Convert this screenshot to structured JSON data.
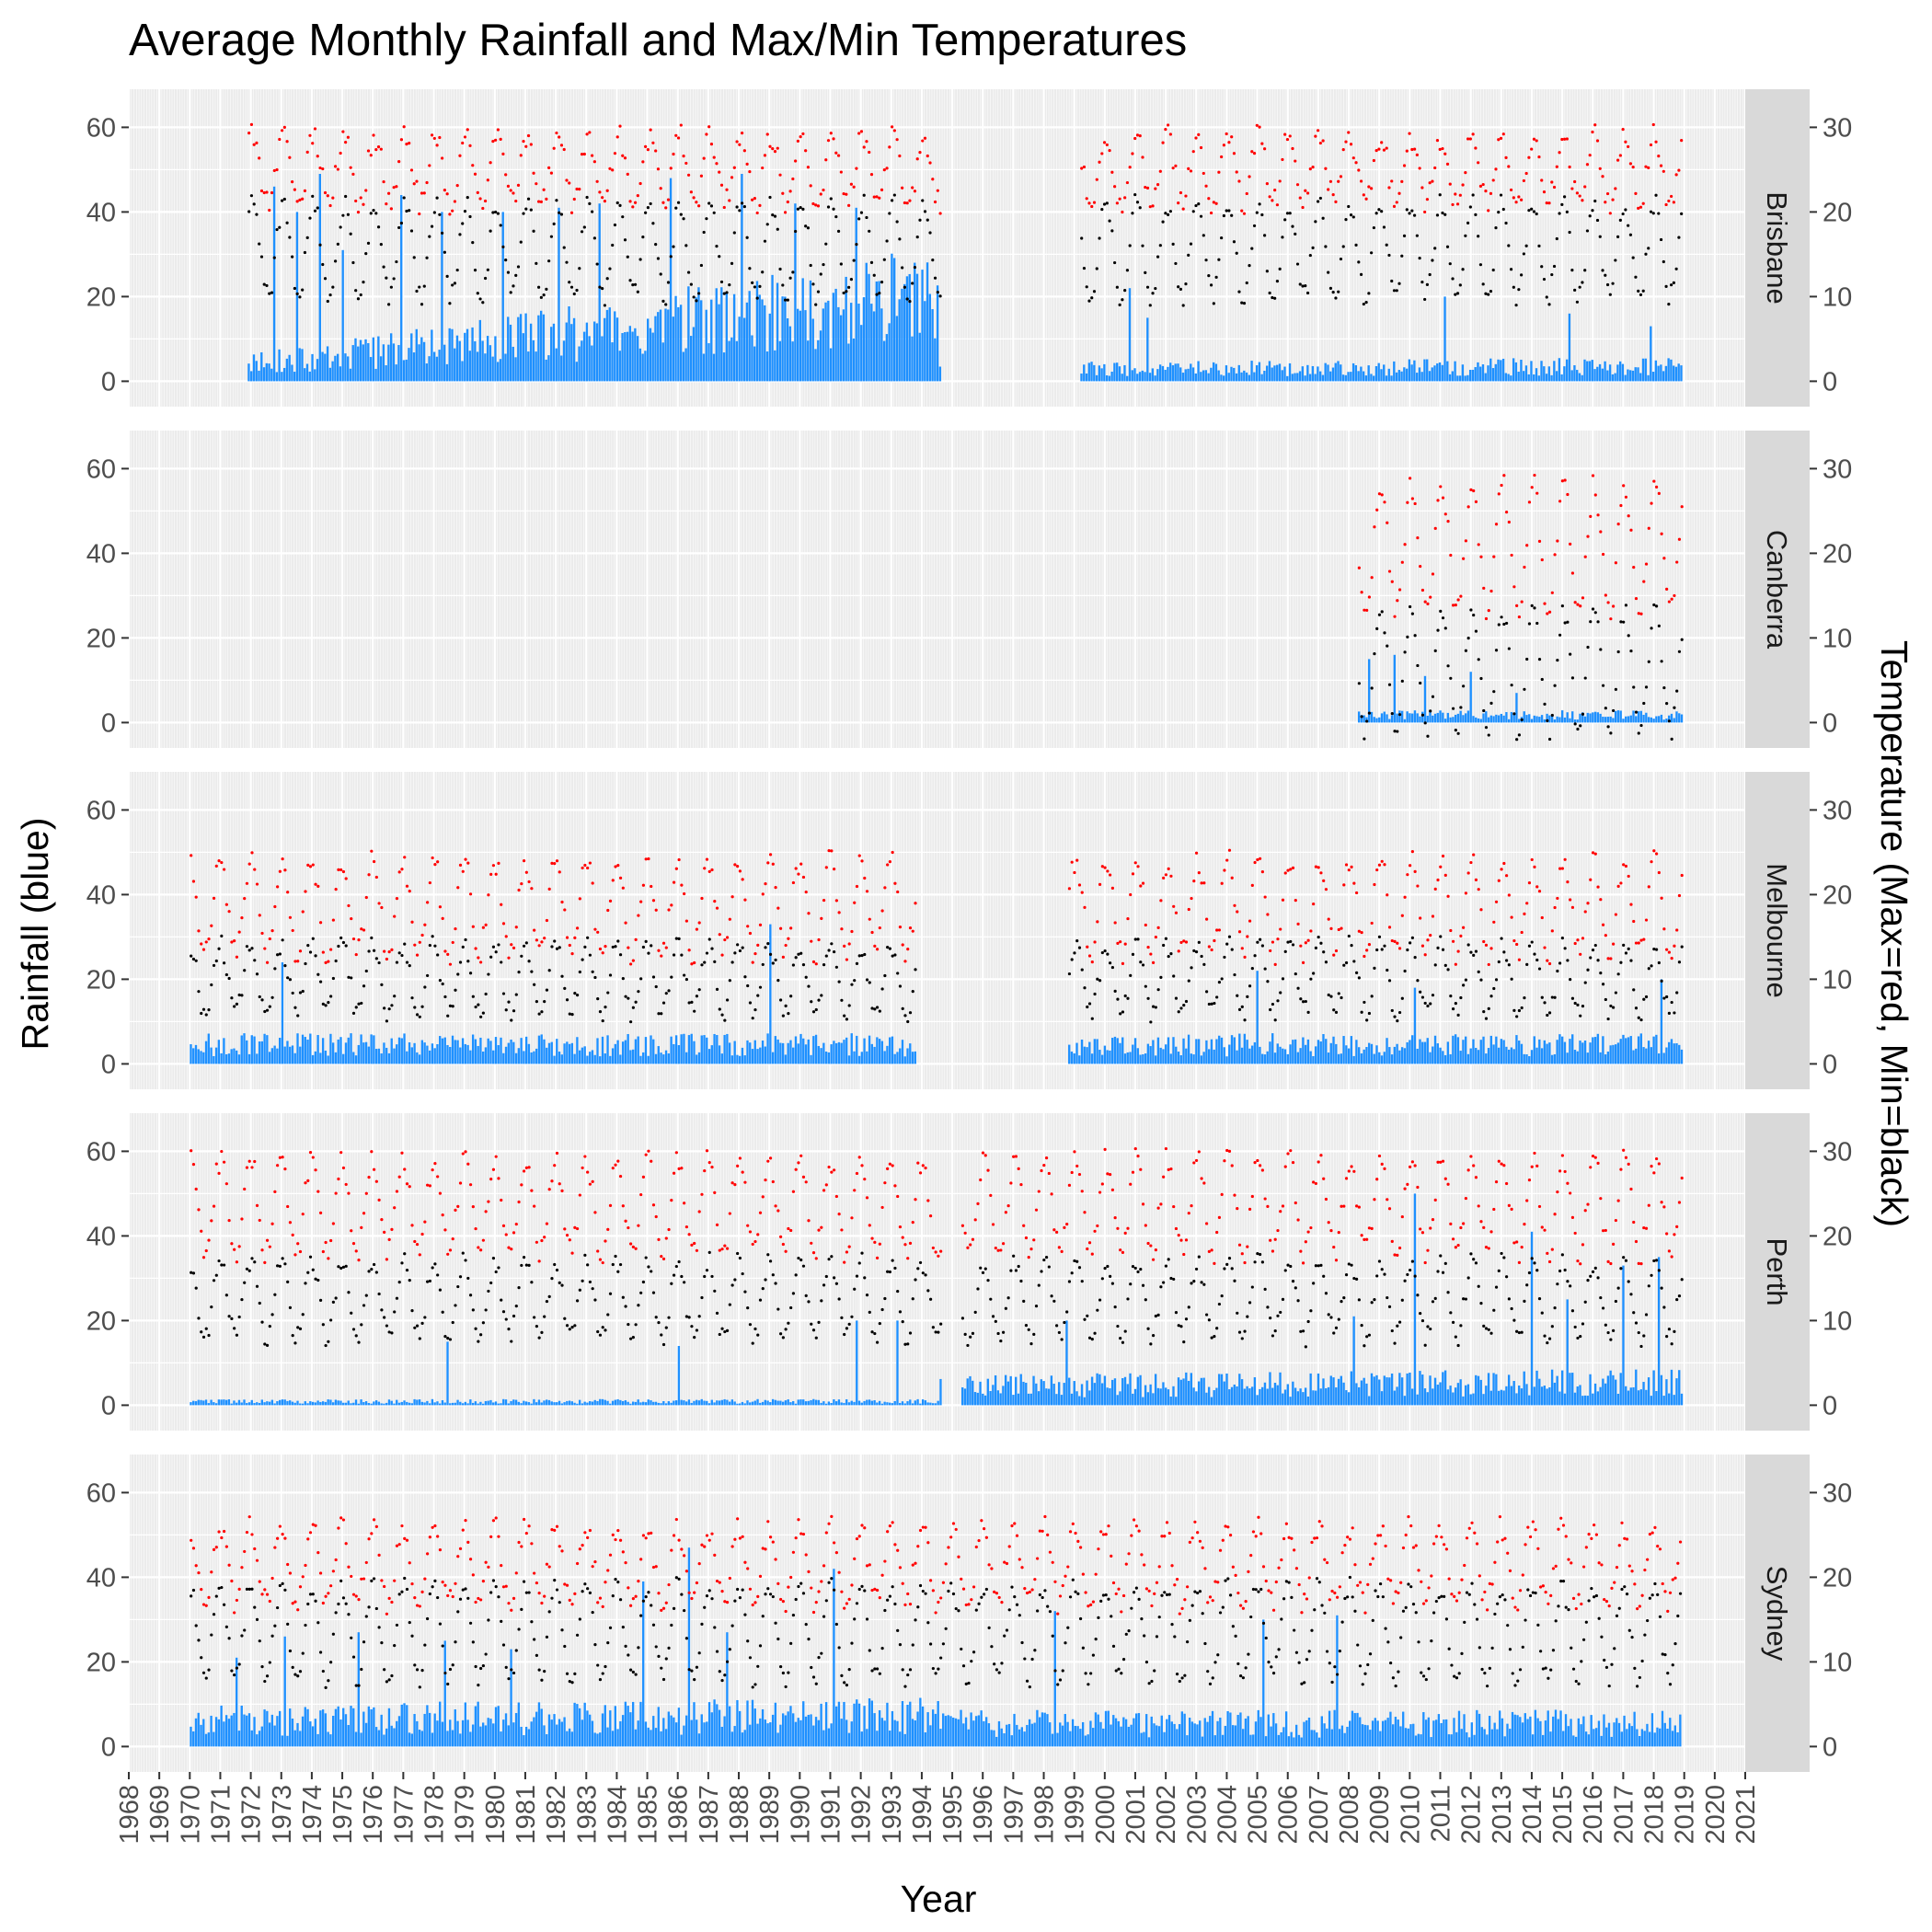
{
  "chart_data": {
    "type": "bar+scatter (faceted, dual axis)",
    "title": "Average Monthly Rainfall and Max/Min Temperatures",
    "xlabel": "Year",
    "ylabel_left": "Rainfall (blue)",
    "ylabel_right": "Temperature (Max=red, Min=black)",
    "x_ticks": [
      "1968",
      "1969",
      "1970",
      "1971",
      "1972",
      "1973",
      "1974",
      "1975",
      "1976",
      "1977",
      "1978",
      "1979",
      "1980",
      "1981",
      "1982",
      "1983",
      "1984",
      "1985",
      "1986",
      "1987",
      "1988",
      "1989",
      "1990",
      "1991",
      "1992",
      "1993",
      "1994",
      "1995",
      "1996",
      "1997",
      "1998",
      "1999",
      "2000",
      "2001",
      "2002",
      "2003",
      "2004",
      "2005",
      "2006",
      "2007",
      "2008",
      "2009",
      "2010",
      "2011",
      "2012",
      "2013",
      "2014",
      "2015",
      "2016",
      "2017",
      "2018",
      "2019",
      "2020",
      "2021"
    ],
    "xlim": [
      1968,
      2021
    ],
    "ylim_left": [
      -6,
      69
    ],
    "yticks_left": [
      "0",
      "20",
      "40",
      "60"
    ],
    "ylim_right": [
      -3,
      34.5
    ],
    "yticks_right": [
      "0",
      "10",
      "20",
      "30"
    ],
    "grid": true,
    "colors": {
      "rainfall": "#1e90ff",
      "max_temp": "#ff0000",
      "min_temp": "#000000",
      "panel_bg": "#ebebeb",
      "strip_bg": "#d9d9d9",
      "grid": "#ffffff"
    },
    "series_labels": {
      "rainfall": "Rainfall (blue)",
      "max_temp": "Max=red",
      "min_temp": "Min=black"
    },
    "facets": [
      {
        "name": "Brisbane",
        "periods": [
          [
            1971.9,
            1994.6
          ],
          [
            1999.2,
            2018.9
          ]
        ],
        "max_temp": {
          "summer": 29,
          "winter": 21
        },
        "min_temp": {
          "summer": 21,
          "winter": 10
        },
        "rain_typical": [
          3,
          22,
          3,
          4
        ],
        "rain_peaks": [
          [
            1972.7,
            46
          ],
          [
            1973.5,
            40
          ],
          [
            1974.2,
            49
          ],
          [
            1975.0,
            31
          ],
          [
            1976.9,
            44
          ],
          [
            1978.2,
            40
          ],
          [
            1980.2,
            40
          ],
          [
            1982.1,
            41
          ],
          [
            1983.4,
            42
          ],
          [
            1985.7,
            48
          ],
          [
            1988.1,
            49
          ],
          [
            1989.8,
            42
          ],
          [
            1991.8,
            41
          ],
          [
            2000.8,
            22
          ],
          [
            2001.4,
            15
          ],
          [
            2011.1,
            20
          ],
          [
            2015.2,
            16
          ],
          [
            2017.9,
            13
          ]
        ]
      },
      {
        "name": "Canberra",
        "periods": [
          [
            2008.3,
            2018.9
          ]
        ],
        "max_temp": {
          "summer": 28,
          "winter": 13
        },
        "min_temp": {
          "summer": 13,
          "winter": -1
        },
        "rain_typical": [
          2,
          2,
          2,
          2
        ],
        "rain_peaks": [
          [
            2008.6,
            15
          ],
          [
            2009.5,
            16
          ],
          [
            2010.5,
            11
          ],
          [
            2012.0,
            12
          ],
          [
            2013.5,
            7
          ]
        ]
      },
      {
        "name": "Melbourne",
        "periods": [
          [
            1970.0,
            1993.8
          ],
          [
            1998.8,
            2018.9
          ]
        ],
        "max_temp": {
          "summer": 24,
          "winter": 13
        },
        "min_temp": {
          "summer": 14,
          "winter": 6
        },
        "rain_typical": [
          5,
          5,
          5,
          5
        ],
        "rain_peaks": [
          [
            1973.0,
            24
          ],
          [
            1989.0,
            33
          ],
          [
            2005.0,
            22
          ],
          [
            2010.1,
            18
          ],
          [
            2018.2,
            20
          ]
        ]
      },
      {
        "name": "Perth",
        "periods": [
          [
            1970.0,
            1994.6
          ],
          [
            1995.3,
            2018.9
          ]
        ],
        "max_temp": {
          "summer": 29,
          "winter": 18
        },
        "min_temp": {
          "summer": 17,
          "winter": 8
        },
        "rain_typical": [
          1,
          1,
          5,
          6
        ],
        "rain_peaks": [
          [
            1978.4,
            15
          ],
          [
            1986.0,
            14
          ],
          [
            1991.8,
            20
          ],
          [
            1993.2,
            20
          ],
          [
            1998.7,
            20
          ],
          [
            2008.1,
            21
          ],
          [
            2010.1,
            50
          ],
          [
            2014.0,
            41
          ],
          [
            2015.1,
            25
          ],
          [
            2017.0,
            33
          ],
          [
            2018.1,
            35
          ]
        ]
      },
      {
        "name": "Sydney",
        "periods": [
          [
            1970.0,
            2018.9
          ]
        ],
        "max_temp": {
          "summer": 26,
          "winter": 17
        },
        "min_temp": {
          "summer": 19,
          "winter": 8
        },
        "rain_typical": [
          7,
          8,
          6,
          6
        ],
        "rain_peaks": [
          [
            1971.5,
            21
          ],
          [
            1973.1,
            26
          ],
          [
            1975.5,
            27
          ],
          [
            1978.3,
            25
          ],
          [
            1980.5,
            23
          ],
          [
            1984.8,
            39
          ],
          [
            1986.3,
            47
          ],
          [
            1987.6,
            27
          ],
          [
            1991.1,
            42
          ],
          [
            1998.3,
            32
          ],
          [
            2005.2,
            30
          ],
          [
            2007.6,
            31
          ]
        ]
      }
    ]
  }
}
